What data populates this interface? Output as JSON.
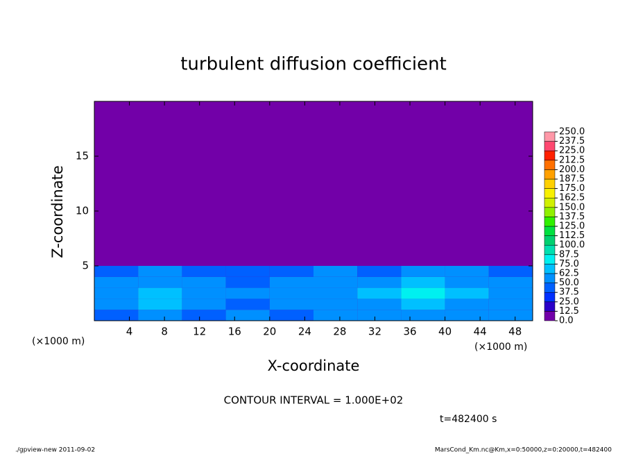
{
  "chart_data": {
    "type": "contour",
    "title": "turbulent diffusion coefficient",
    "x_label": "X-coordinate",
    "y_label": "Z-coordinate",
    "x_unit": "(×1000 m)",
    "y_unit": "(×1000 m)",
    "contour_note": "CONTOUR INTERVAL = 1.000E+02",
    "time_label": "t=482400 s",
    "footer_left": "./gpview-new  2011-09-02",
    "footer_right": "MarsCond_Km.nc@Km,x=0:50000,z=0:20000,t=482400",
    "xlim": [
      0,
      50
    ],
    "ylim": [
      0,
      20
    ],
    "xticks": [
      4,
      8,
      12,
      16,
      20,
      24,
      28,
      32,
      36,
      40,
      44,
      48
    ],
    "yticks": [
      5,
      10,
      15
    ],
    "x": [
      2.5,
      7.5,
      12.5,
      17.5,
      22.5,
      27.5,
      32.5,
      37.5,
      42.5,
      47.5
    ],
    "y": [
      0.5,
      1.5,
      2.5,
      3.5,
      4.5,
      5.5
    ],
    "values": [
      [
        45,
        60,
        40,
        50,
        45,
        55,
        50,
        60,
        55,
        50
      ],
      [
        55,
        70,
        50,
        45,
        60,
        50,
        55,
        70,
        60,
        55
      ],
      [
        60,
        65,
        55,
        60,
        50,
        60,
        65,
        75,
        65,
        60
      ],
      [
        50,
        60,
        50,
        45,
        55,
        55,
        50,
        70,
        60,
        55
      ],
      [
        40,
        50,
        45,
        40,
        45,
        50,
        45,
        55,
        50,
        45
      ],
      [
        5,
        10,
        5,
        5,
        10,
        5,
        5,
        5,
        5,
        5
      ]
    ],
    "levels": [
      {
        "value": 0,
        "label": "0.0"
      },
      12.5,
      {
        "value": 25,
        "label": "25.0"
      },
      37.5,
      {
        "value": 50,
        "label": "50.0"
      },
      62.5,
      {
        "value": 75,
        "label": "75.0"
      },
      87.5,
      {
        "value": 100,
        "label": "100.0"
      },
      112.5,
      {
        "value": 125,
        "label": "125.0"
      },
      137.5,
      {
        "value": 150,
        "label": "150.0"
      },
      162.5,
      {
        "value": 175,
        "label": "175.0"
      },
      187.5,
      {
        "value": 200,
        "label": "200.0"
      },
      212.5,
      {
        "value": 225,
        "label": "225.0"
      },
      237.5,
      {
        "value": 250,
        "label": "250.0"
      }
    ],
    "colors": [
      "#7200a8",
      "#2a00c8",
      "#0030ff",
      "#0060ff",
      "#0090ff",
      "#00c0ff",
      "#00f0f0",
      "#00e0b0",
      "#00d070",
      "#00e040",
      "#30f000",
      "#90f000",
      "#d0f000",
      "#f8f000",
      "#ffd000",
      "#ffa000",
      "#ff7000",
      "#ff2000",
      "#ff4870",
      "#ff98a8"
    ]
  }
}
